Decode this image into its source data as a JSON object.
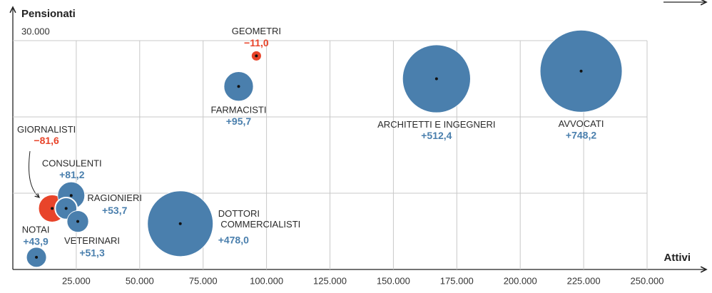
{
  "chart_data": {
    "type": "bubble",
    "y_label": "Pensionati",
    "x_label": "Attivi",
    "labels": [
      "GEOMETRI",
      "FARMACISTI",
      "ARCHITETTI E INGEGNERI",
      "AVVOCATI",
      "DOTTORI COMMERCIALISTI",
      "GIORNALISTI",
      "CONSULENTI",
      "RAGIONIERI",
      "VETERINARI",
      "NOTAI"
    ],
    "x": [
      96000,
      89000,
      167000,
      224000,
      66000,
      15500,
      23000,
      21000,
      25600,
      9300
    ],
    "values": [
      28000,
      24000,
      25000,
      26000,
      6000,
      8000,
      9700,
      8000,
      6300,
      1600
    ],
    "sizes": [
      -11.0,
      95.7,
      512.4,
      748.2,
      478.0,
      -81.6,
      81.2,
      53.7,
      51.3,
      43.9
    ],
    "value_labels": [
      "−11,0",
      "+95,7",
      "+512,4",
      "+748,2",
      "+478,0",
      "−81,6",
      "+81,2",
      "+53,7",
      "+51,3",
      "+43,9"
    ],
    "positive_color": "#4a7fad",
    "negative_color": "#e8442a",
    "xlim": [
      0,
      250000
    ],
    "ylim": [
      0,
      30000
    ],
    "xticks": [
      {
        "value": 25000,
        "label": "25.000"
      },
      {
        "value": 50000,
        "label": "50.000"
      },
      {
        "value": 75000,
        "label": "75.000"
      },
      {
        "value": 100000,
        "label": "100.000"
      },
      {
        "value": 125000,
        "label": "125.000"
      },
      {
        "value": 150000,
        "label": "150.000"
      },
      {
        "value": 175000,
        "label": "175.000"
      },
      {
        "value": 200000,
        "label": "200.000"
      },
      {
        "value": 225000,
        "label": "225.000"
      },
      {
        "value": 250000,
        "label": "250.000"
      }
    ],
    "yticks": [
      {
        "value": 10000,
        "label": null
      },
      {
        "value": 20000,
        "label": null
      },
      {
        "value": 30000,
        "label": "30.000"
      }
    ],
    "grid": true
  }
}
